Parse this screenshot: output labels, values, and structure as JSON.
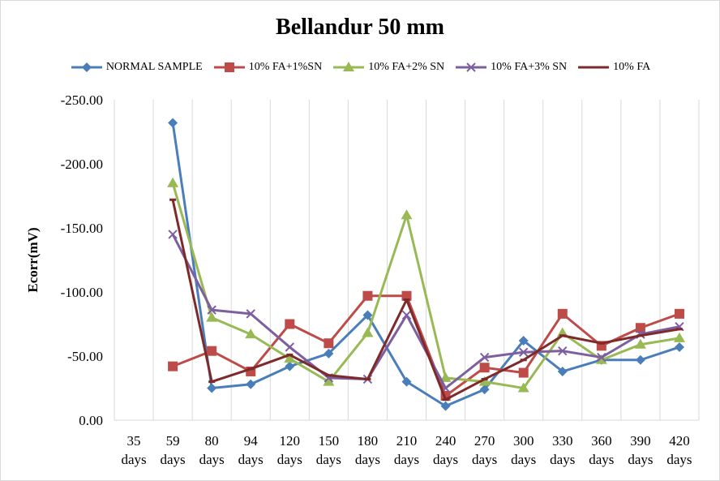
{
  "chart_data": {
    "type": "line",
    "title": "Bellandur 50 mm",
    "xlabel": "",
    "ylabel": "Ecorr(mV)",
    "ylim": [
      0,
      -250
    ],
    "yticks": [
      "-250.00",
      "-200.00",
      "-150.00",
      "-100.00",
      "-50.00",
      "0.00"
    ],
    "ytick_values": [
      -250,
      -200,
      -150,
      -100,
      -50,
      0
    ],
    "categories": [
      [
        "35",
        "days"
      ],
      [
        "59",
        "days"
      ],
      [
        "80",
        "days"
      ],
      [
        "94",
        "days"
      ],
      [
        "120",
        "days"
      ],
      [
        "150",
        "days"
      ],
      [
        "180",
        "days"
      ],
      [
        "210",
        "days"
      ],
      [
        "240",
        "days"
      ],
      [
        "270",
        "days"
      ],
      [
        "300",
        "days"
      ],
      [
        "330",
        "days"
      ],
      [
        "360",
        "days"
      ],
      [
        "390",
        "days"
      ],
      [
        "420",
        "days"
      ]
    ],
    "grid": "vertical",
    "legend_position": "top",
    "series": [
      {
        "name": "NORMAL SAMPLE",
        "color": "#4a7ebb",
        "marker": "diamond",
        "values": [
          null,
          -232,
          -25,
          -28,
          -42,
          -52,
          -82,
          -30,
          -11,
          -24,
          -62,
          -38,
          -47,
          -47,
          -57
        ]
      },
      {
        "name": "10% FA+1%SN",
        "color": "#be4b48",
        "marker": "square",
        "values": [
          null,
          -42,
          -54,
          -38,
          -75,
          -60,
          -97,
          -97,
          -19,
          -41,
          -37,
          -83,
          -58,
          -72,
          -83
        ]
      },
      {
        "name": "10% FA+2% SN",
        "color": "#98b954",
        "marker": "triangle",
        "values": [
          null,
          -185,
          -80,
          -67,
          -48,
          -30,
          -68,
          -160,
          -33,
          -30,
          -25,
          -68,
          -47,
          -59,
          -64
        ]
      },
      {
        "name": "10% FA+3% SN",
        "color": "#7d5fa0",
        "marker": "x",
        "values": [
          null,
          -145,
          -86,
          -83,
          -57,
          -33,
          -32,
          -82,
          -25,
          -49,
          -53,
          -54,
          -49,
          -67,
          -73
        ]
      },
      {
        "name": "10% FA",
        "color": "#7f2a2a",
        "marker": "dash",
        "values": [
          null,
          -172,
          -30,
          -40,
          -51,
          -35,
          -32,
          -94,
          -16,
          -32,
          -47,
          -66,
          -60,
          -66,
          -71
        ]
      }
    ]
  }
}
